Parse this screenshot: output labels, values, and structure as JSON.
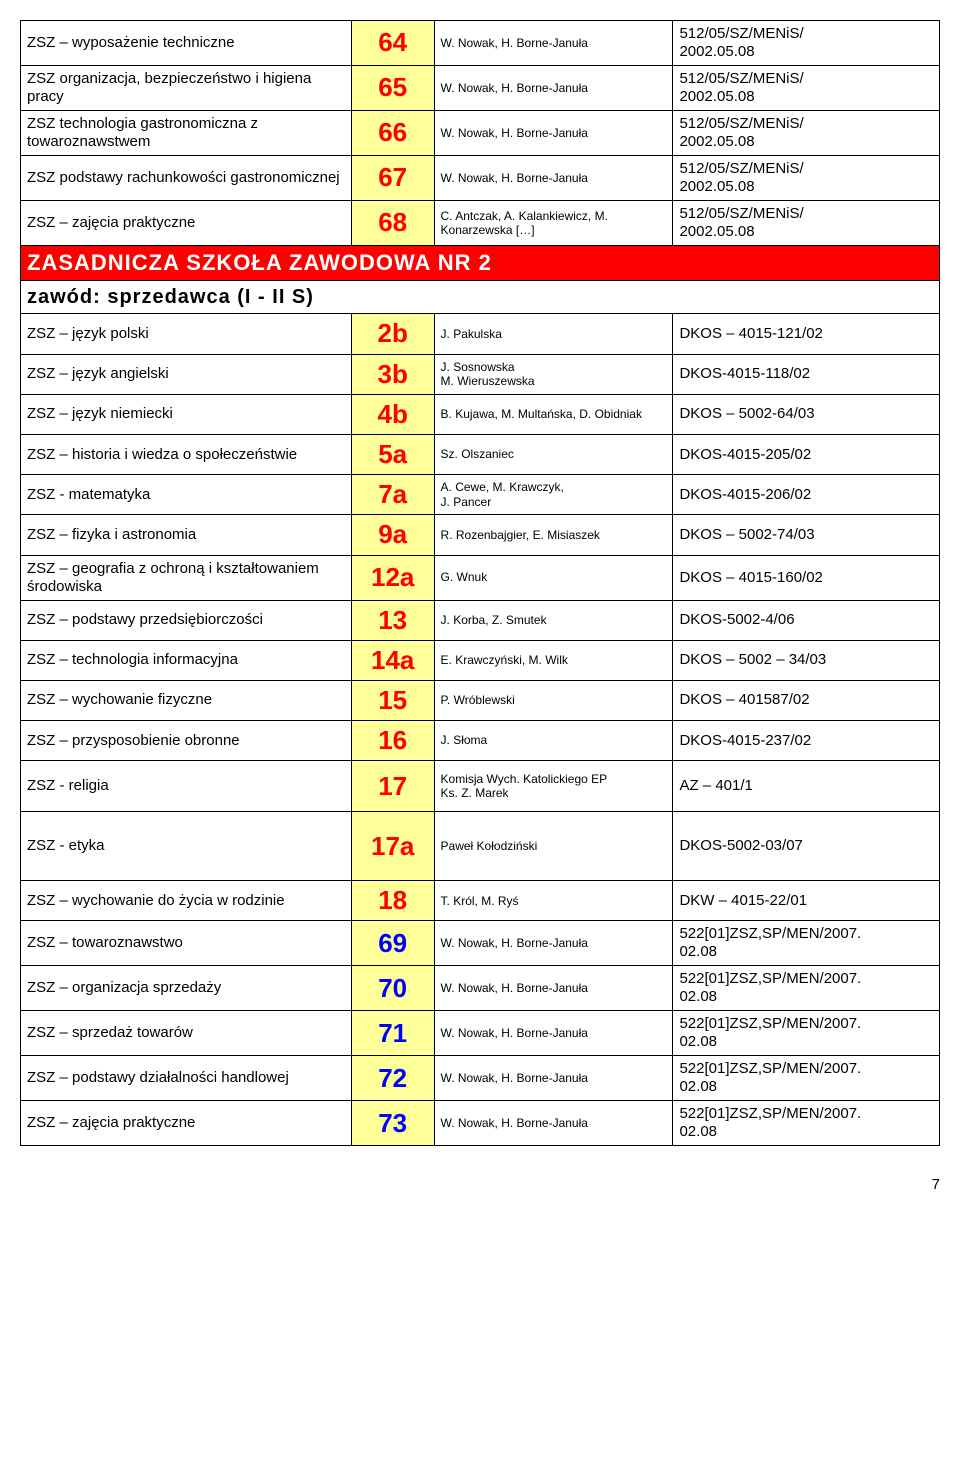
{
  "upper_rows": [
    {
      "subject": "ZSZ – wyposażenie techniczne",
      "num": "64",
      "author": "W. Nowak, H. Borne-Januła",
      "code": "512/05/SZ/MENiS/\n2002.05.08"
    },
    {
      "subject": "ZSZ organizacja, bezpieczeństwo i higiena pracy",
      "num": "65",
      "author": "W. Nowak, H. Borne-Januła",
      "code": "512/05/SZ/MENiS/\n2002.05.08"
    },
    {
      "subject": "ZSZ technologia gastronomiczna z towaroznawstwem",
      "num": "66",
      "author": "W. Nowak, H. Borne-Januła",
      "code": "512/05/SZ/MENiS/\n2002.05.08"
    },
    {
      "subject": "ZSZ  podstawy rachunkowości gastronomicznej",
      "num": "67",
      "author": "W. Nowak, H. Borne-Januła",
      "code": "512/05/SZ/MENiS/\n2002.05.08"
    },
    {
      "subject": "ZSZ – zajęcia praktyczne",
      "num": "68",
      "author": "C. Antczak, A. Kalankiewicz, M. Konarzewska […]",
      "code": "512/05/SZ/MENiS/\n2002.05.08"
    }
  ],
  "banner": "ZASADNICZA SZKOŁA ZAWODOWA NR 2",
  "subheader": "zawód: sprzedawca (I - II S)",
  "lower_rows": [
    {
      "subject": "ZSZ – język polski",
      "num": "2b",
      "author": "J. Pakulska",
      "code": "DKOS – 4015-121/02"
    },
    {
      "subject": "ZSZ – język angielski",
      "num": "3b",
      "author": "J. Sosnowska\nM. Wieruszewska",
      "code": "DKOS-4015-118/02"
    },
    {
      "subject": "ZSZ – język niemiecki",
      "num": "4b",
      "author": "B. Kujawa, M. Multańska, D. Obidniak",
      "code": "DKOS – 5002-64/03"
    },
    {
      "subject": "ZSZ – historia i wiedza o społeczeństwie",
      "num": "5a",
      "author": "Sz. Olszaniec",
      "code": "DKOS-4015-205/02"
    },
    {
      "subject": "ZSZ - matematyka",
      "num": "7a",
      "author": "A. Cewe,  M. Krawczyk,\nJ. Pancer",
      "code": "DKOS-4015-206/02"
    },
    {
      "subject": "ZSZ – fizyka i astronomia",
      "num": "9a",
      "author": "R. Rozenbajgier, E. Misiaszek",
      "code": "DKOS – 5002-74/03"
    },
    {
      "subject": "ZSZ – geografia z ochroną i kształtowaniem środowiska",
      "num": "12a",
      "author": "G. Wnuk",
      "code": "DKOS – 4015-160/02"
    },
    {
      "subject": "ZSZ – podstawy przedsiębiorczości",
      "num": "13",
      "author": "J. Korba, Z. Smutek",
      "code": "DKOS-5002-4/06"
    },
    {
      "subject": "ZSZ – technologia informacyjna",
      "num": "14a",
      "author": "E. Krawczyński, M. Wilk",
      "code": "DKOS – 5002 – 34/03"
    },
    {
      "subject": "ZSZ – wychowanie fizyczne",
      "num": "15",
      "author": "P. Wróblewski",
      "code": "DKOS – 401587/02"
    },
    {
      "subject": "ZSZ – przysposobienie obronne",
      "num": "16",
      "author": "J. Słoma",
      "code": "DKOS-4015-237/02"
    },
    {
      "subject": "ZSZ - religia",
      "num": "17",
      "author": "Komisja Wych. Katolickiego EP\nKs. Z. Marek",
      "code": "AZ – 401/1",
      "tallCode": true
    },
    {
      "subject": "ZSZ - etyka",
      "num": "17a",
      "author": "Paweł Kołodziński",
      "code": "DKOS-5002-03/07",
      "tallSubj": true
    },
    {
      "subject": "ZSZ – wychowanie do życia w rodzinie",
      "num": "18",
      "author": "T. Król, M. Ryś",
      "code": "DKW – 4015-22/01"
    },
    {
      "subject": "ZSZ – towaroznawstwo",
      "num": "69",
      "blueNum": true,
      "author": "W. Nowak, H. Borne-Januła",
      "code": "522[01]ZSZ,SP/MEN/2007.\n02.08"
    },
    {
      "subject": "ZSZ – organizacja sprzedaży",
      "num": "70",
      "blueNum": true,
      "author": "W. Nowak, H. Borne-Januła",
      "code": "522[01]ZSZ,SP/MEN/2007.\n02.08"
    },
    {
      "subject": "ZSZ – sprzedaż towarów",
      "num": "71",
      "blueNum": true,
      "author": "W. Nowak, H. Borne-Januła",
      "code": "522[01]ZSZ,SP/MEN/2007.\n02.08"
    },
    {
      "subject": "ZSZ – podstawy działalności handlowej",
      "num": "72",
      "blueNum": true,
      "author": "W. Nowak, H. Borne-Januła",
      "code": "522[01]ZSZ,SP/MEN/2007.\n02.08"
    },
    {
      "subject": "ZSZ – zajęcia praktyczne",
      "num": "73",
      "blueNum": true,
      "author": "W. Nowak, H. Borne-Januła",
      "code": "522[01]ZSZ,SP/MEN/2007.\n02.08"
    }
  ],
  "page_number": "7"
}
